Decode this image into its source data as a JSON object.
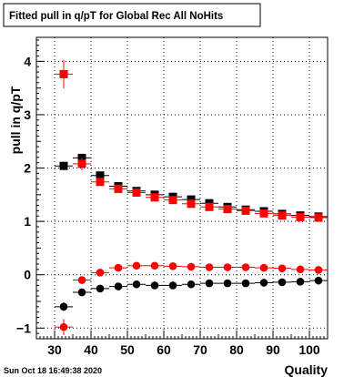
{
  "chart_data": {
    "type": "scatter",
    "title": "Fitted pull in q/pT for Global Rec All NoHits",
    "xlabel": "Quality",
    "ylabel": "pull in q/pT",
    "xlim": [
      25,
      105
    ],
    "ylim": [
      -1.2,
      4.45
    ],
    "xticks": [
      30,
      40,
      50,
      60,
      70,
      80,
      90,
      100
    ],
    "yticks": [
      -1,
      0,
      1,
      2,
      3,
      4
    ],
    "grid": true,
    "footer": "Sun Oct 18 16:49:38 2020",
    "x": [
      32.5,
      37.5,
      42.5,
      47.5,
      52.5,
      57.5,
      62.5,
      67.5,
      72.5,
      77.5,
      82.5,
      87.5,
      92.5,
      97.5,
      102.5
    ],
    "series": [
      {
        "marker": "square",
        "color": "#000000",
        "values": [
          2.04,
          2.19,
          1.86,
          1.66,
          1.57,
          1.5,
          1.46,
          1.41,
          1.34,
          1.27,
          1.22,
          1.19,
          1.14,
          1.11,
          1.09
        ],
        "errors": [
          0.07,
          0.06,
          0.05,
          0.04,
          0.03,
          0.03,
          0.03,
          0.03,
          0.03,
          0.03,
          0.03,
          0.03,
          0.03,
          0.03,
          0.03
        ]
      },
      {
        "marker": "square",
        "color": "#ff0000",
        "values": [
          3.76,
          2.08,
          1.74,
          1.61,
          1.54,
          1.45,
          1.4,
          1.33,
          1.27,
          1.23,
          1.2,
          1.15,
          1.11,
          1.08,
          1.07
        ],
        "errors": [
          0.27,
          0.12,
          0.06,
          0.05,
          0.04,
          0.03,
          0.03,
          0.03,
          0.03,
          0.03,
          0.03,
          0.03,
          0.03,
          0.03,
          0.03
        ]
      },
      {
        "marker": "circle",
        "color": "#ff0000",
        "values": [
          -0.98,
          -0.1,
          0.04,
          0.13,
          0.17,
          0.17,
          0.16,
          0.15,
          0.14,
          0.14,
          0.14,
          0.13,
          0.12,
          0.1,
          0.09
        ],
        "errors": [
          0.15,
          0.06,
          0.04,
          0.03,
          0.03,
          0.02,
          0.02,
          0.02,
          0.02,
          0.02,
          0.02,
          0.02,
          0.02,
          0.02,
          0.02
        ]
      },
      {
        "marker": "circle",
        "color": "#000000",
        "values": [
          -0.6,
          -0.33,
          -0.26,
          -0.22,
          -0.18,
          -0.2,
          -0.2,
          -0.18,
          -0.16,
          -0.16,
          -0.16,
          -0.15,
          -0.14,
          -0.13,
          -0.11
        ],
        "errors": [
          0.08,
          0.04,
          0.03,
          0.03,
          0.02,
          0.02,
          0.02,
          0.02,
          0.02,
          0.02,
          0.02,
          0.02,
          0.02,
          0.02,
          0.02
        ]
      }
    ]
  }
}
